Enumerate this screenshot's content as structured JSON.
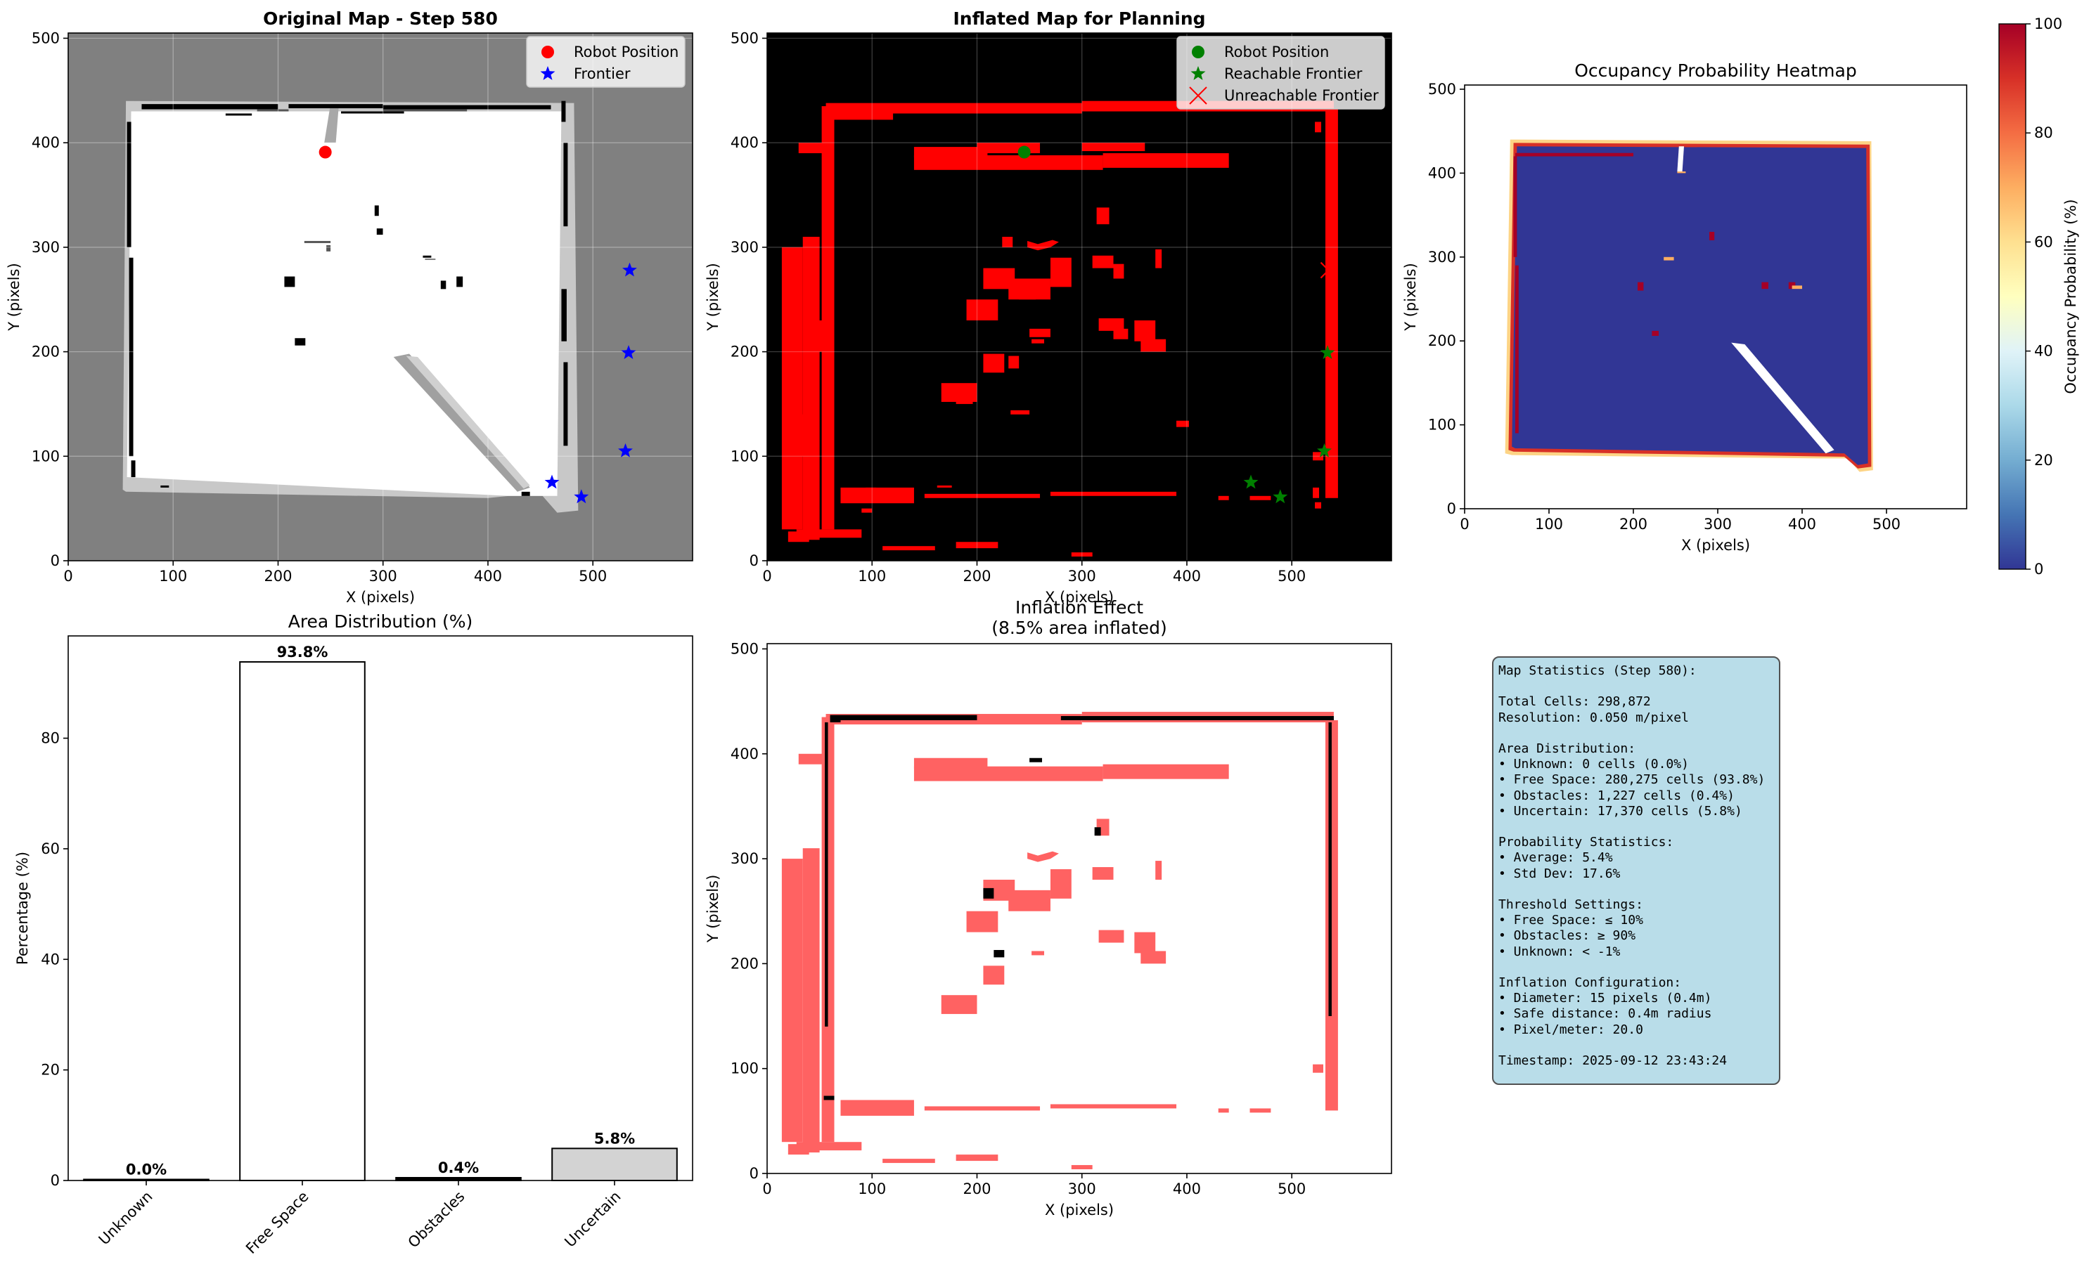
{
  "chart_data": [
    {
      "type": "scatter",
      "title": "Original Map - Step 580",
      "xlabel": "X (pixels)",
      "ylabel": "Y (pixels)",
      "xlim": [
        0,
        595
      ],
      "ylim": [
        0,
        505
      ],
      "xticks": [
        0,
        100,
        200,
        300,
        400,
        500
      ],
      "yticks": [
        0,
        100,
        200,
        300,
        400,
        500
      ],
      "grid": true,
      "legend": "top-right",
      "background_color": "#808080",
      "series": [
        {
          "name": "Robot Position",
          "color": "#ff0000",
          "marker": "circle",
          "points": [
            [
              245,
              391
            ]
          ]
        },
        {
          "name": "Frontier",
          "color": "#0000ff",
          "marker": "star",
          "points": [
            [
              535,
              278
            ],
            [
              534,
              199
            ],
            [
              531,
              105
            ],
            [
              461,
              75
            ],
            [
              489,
              61
            ]
          ]
        }
      ]
    },
    {
      "type": "scatter",
      "title": "Inflated Map for Planning",
      "xlabel": "X (pixels)",
      "ylabel": "Y (pixels)",
      "xlim": [
        0,
        595
      ],
      "ylim": [
        0,
        505
      ],
      "xticks": [
        0,
        100,
        200,
        300,
        400,
        500
      ],
      "yticks": [
        0,
        100,
        200,
        300,
        400,
        500
      ],
      "grid": true,
      "legend": "top-right",
      "background_color": "#000000",
      "series": [
        {
          "name": "Robot Position",
          "color": "#008000",
          "marker": "circle",
          "points": [
            [
              245,
              391
            ]
          ]
        },
        {
          "name": "Reachable Frontier",
          "color": "#008000",
          "marker": "star",
          "points": [
            [
              534,
              199
            ],
            [
              531,
              105
            ],
            [
              461,
              75
            ],
            [
              489,
              61
            ]
          ]
        },
        {
          "name": "Unreachable Frontier",
          "color": "#ff0000",
          "marker": "x",
          "points": [
            [
              535,
              278
            ]
          ]
        }
      ]
    },
    {
      "type": "heatmap",
      "title": "Occupancy Probability Heatmap",
      "xlabel": "X (pixels)",
      "ylabel": "Y (pixels)",
      "xlim": [
        0,
        595
      ],
      "ylim": [
        0,
        505
      ],
      "xticks": [
        0,
        100,
        200,
        300,
        400,
        500
      ],
      "yticks": [
        0,
        100,
        200,
        300,
        400,
        500
      ],
      "colorbar": {
        "label": "Occupancy Probability (%)",
        "range": [
          0,
          100
        ],
        "ticks": [
          0,
          20,
          40,
          60,
          80,
          100
        ],
        "colormap": "RdYlBu_r"
      }
    },
    {
      "type": "bar",
      "title": "Area Distribution (%)",
      "ylabel": "Percentage (%)",
      "categories": [
        "Unknown",
        "Free Space",
        "Obstacles",
        "Uncertain"
      ],
      "values": [
        0.0,
        93.8,
        0.4,
        5.8
      ],
      "value_labels": [
        "0.0%",
        "93.8%",
        "0.4%",
        "5.8%"
      ],
      "colors": [
        "#808080",
        "#ffffff",
        "#000000",
        "#d3d3d3"
      ],
      "ylim": [
        0,
        98.5
      ],
      "yticks": [
        0,
        20,
        40,
        60,
        80
      ]
    },
    {
      "type": "heatmap",
      "title": "Inflation Effect",
      "subtitle": "(8.5% area inflated)",
      "xlabel": "X (pixels)",
      "ylabel": "Y (pixels)",
      "xlim": [
        0,
        595
      ],
      "ylim": [
        0,
        505
      ],
      "xticks": [
        0,
        100,
        200,
        300,
        400,
        500
      ],
      "yticks": [
        0,
        100,
        200,
        300,
        400,
        500
      ]
    }
  ],
  "stats_text": "Map Statistics (Step 580):\n\nTotal Cells: 298,872\nResolution: 0.050 m/pixel\n\nArea Distribution:\n• Unknown: 0 cells (0.0%)\n• Free Space: 280,275 cells (93.8%)\n• Obstacles: 1,227 cells (0.4%)\n• Uncertain: 17,370 cells (5.8%)\n\nProbability Statistics:\n• Average: 5.4%\n• Std Dev: 17.6%\n\nThreshold Settings:\n• Free Space: ≤ 10%\n• Obstacles: ≥ 90%\n• Unknown: < -1%\n\nInflation Configuration:\n• Diameter: 15 pixels (0.4m)\n• Safe distance: 0.4m radius\n• Pixel/meter: 20.0\n\nTimestamp: 2025-09-12 23:43:24"
}
